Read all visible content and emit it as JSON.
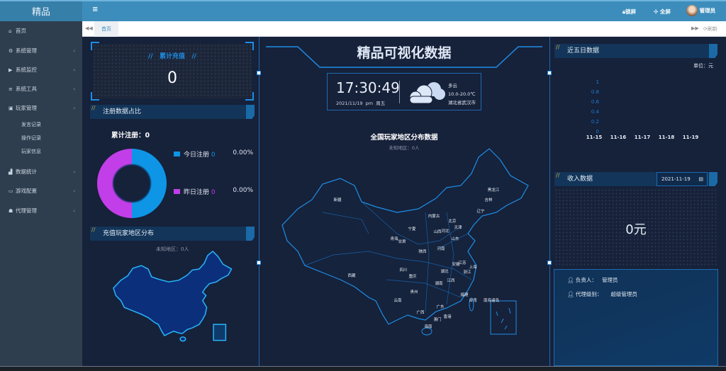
{
  "app": {
    "logo": "精品"
  },
  "sidebar": {
    "items": [
      {
        "icon": "home-icon",
        "glyph": "⌂",
        "label": "首页",
        "chev": false
      },
      {
        "icon": "gear-icon",
        "glyph": "⚙",
        "label": "系统管理",
        "chev": true
      },
      {
        "icon": "video-icon",
        "glyph": "▶",
        "label": "系统监控",
        "chev": true
      },
      {
        "icon": "list-icon",
        "glyph": "≡",
        "label": "系统工具",
        "chev": true
      },
      {
        "icon": "user-box-icon",
        "glyph": "▣",
        "label": "玩家管理",
        "chev": true
      },
      {
        "icon": "chart-icon",
        "glyph": "▟",
        "label": "数据统计",
        "chev": true
      },
      {
        "icon": "monitor-icon",
        "glyph": "▭",
        "label": "游戏配置",
        "chev": true
      },
      {
        "icon": "group-icon",
        "glyph": "☗",
        "label": "代理管理",
        "chev": true
      }
    ],
    "subitems": [
      "发言记录",
      "操作记录",
      "玩家信息"
    ]
  },
  "topbar": {
    "lock": "锁屏",
    "fullscreen": "全屏",
    "user": "管理员"
  },
  "tabs": {
    "home": "首页",
    "refresh": "刷新"
  },
  "left": {
    "recharge_title": "累计充值",
    "recharge_value": "0",
    "reg_title": "注册数据占比",
    "reg_total": "累计注册：0",
    "legend": [
      {
        "label": "今日注册",
        "count": "0",
        "pct": "0.00%",
        "color": "#0f95e6"
      },
      {
        "label": "昨日注册",
        "count": "0",
        "pct": "0.00%",
        "color": "#c23ee8"
      }
    ],
    "map_title": "充值玩家地区分布",
    "map_sub": "未知地区：0人"
  },
  "center": {
    "title": "精品可视化数据",
    "time": "17:30:49",
    "date": "2021/11/19",
    "ampm": "pm",
    "weekday": "周五",
    "weather": {
      "icon": "cloud-icon",
      "desc": "多云",
      "temp": "10.0-20.0℃",
      "city": "湖北省武汉市"
    },
    "map_title": "全国玩家地区分布数据",
    "map_sub": "未知地区：0人",
    "provinces": [
      "新疆",
      "西藏",
      "青海",
      "甘肃",
      "宁夏",
      "内蒙古",
      "黑龙江",
      "吉林",
      "辽宁",
      "北京",
      "天津",
      "山西",
      "河北",
      "山东",
      "陕西",
      "河南",
      "四川",
      "重庆",
      "湖北",
      "安徽",
      "江苏",
      "上海",
      "浙江",
      "湖南",
      "江西",
      "贵州",
      "云南",
      "福建",
      "台湾",
      "南海诸岛",
      "广东",
      "广西",
      "澳门",
      "香港",
      "海南"
    ]
  },
  "right": {
    "five_title": "近五日数据",
    "unit": "单位：元",
    "chart_data": {
      "type": "bar",
      "categories": [
        "11-15",
        "11-16",
        "11-17",
        "11-18",
        "11-19"
      ],
      "values": [
        0,
        0,
        0,
        0,
        0
      ],
      "ylim": [
        0,
        1
      ],
      "yticks": [
        "1",
        "0.8",
        "0.6",
        "0.4",
        "0.2",
        "0"
      ]
    },
    "income_title": "收入数据",
    "date": "2021-11-19",
    "income_value": "0元",
    "owner_label": "负责人：",
    "owner": "管理员",
    "level_label": "代理级别：",
    "level": "超级管理员"
  },
  "colors": {
    "accent": "#1e8ee6",
    "topbar": "#3c8dbc",
    "sidebar": "#2f3e4f",
    "bg": "#16213a"
  }
}
